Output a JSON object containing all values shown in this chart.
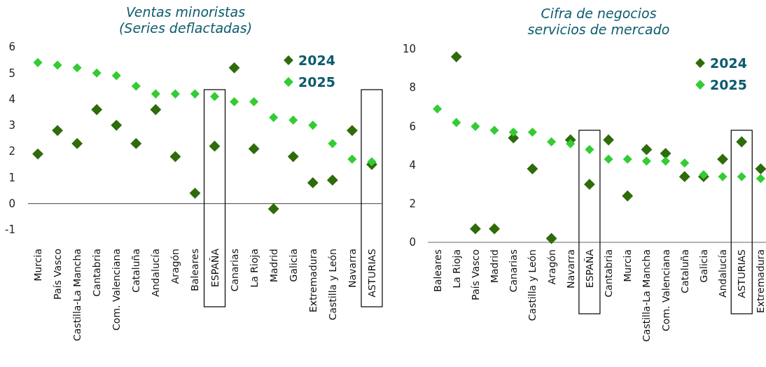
{
  "chart_data": [
    {
      "type": "scatter",
      "title": "Ventas minoristas\n(Series deflactadas)",
      "categories": [
        "Murcia",
        "País Vasco",
        "Castilla-La Mancha",
        "Cantabria",
        "Com. Valenciana",
        "Cataluña",
        "Andalucía",
        "Aragón",
        "Baleares",
        "ESPAÑA",
        "Canarias",
        "La Rioja",
        "Madrid",
        "Galicia",
        "Extremadura",
        "Castilla y León",
        "Navarra",
        "ASTURIAS"
      ],
      "series": [
        {
          "name": "2024",
          "color": "#2e6b0a",
          "values": [
            1.9,
            2.8,
            2.3,
            3.6,
            3.0,
            2.3,
            3.6,
            1.8,
            0.4,
            2.2,
            5.2,
            2.1,
            -0.2,
            1.8,
            0.8,
            0.9,
            2.8,
            1.5
          ]
        },
        {
          "name": "2025",
          "color": "#33cc33",
          "values": [
            5.4,
            5.3,
            5.2,
            5.0,
            4.9,
            4.5,
            4.2,
            4.2,
            4.2,
            4.1,
            3.9,
            3.9,
            3.3,
            3.2,
            3.0,
            2.3,
            1.7,
            1.6
          ]
        }
      ],
      "ylim": [
        -1,
        6
      ],
      "yticks": [
        -1,
        0,
        1,
        2,
        3,
        4,
        5,
        6
      ],
      "ref_lines": [
        {
          "axis": "y",
          "value": 0,
          "color": "#666666"
        }
      ],
      "grid": false,
      "legend": "top right",
      "marker": "diamond"
    },
    {
      "type": "scatter",
      "title": "Cifra de negocios\nservicios de mercado",
      "categories": [
        "Baleares",
        "La Rioja",
        "País Vasco",
        "Madrid",
        "Canarias",
        "Castilla y León",
        "Aragón",
        "Navarra",
        "ESPAÑA",
        "Cantabria",
        "Murcia",
        "Castilla-La Mancha",
        "Com. Valenciana",
        "Cataluña",
        "Galicia",
        "Andalucía",
        "ASTURIAS",
        "Extremadura"
      ],
      "series": [
        {
          "name": "2024",
          "color": "#2e6b0a",
          "values": [
            null,
            9.6,
            0.7,
            0.7,
            5.4,
            3.8,
            0.2,
            5.3,
            3.0,
            5.3,
            2.4,
            4.8,
            4.6,
            3.4,
            3.4,
            4.3,
            5.2,
            3.8
          ]
        },
        {
          "name": "2025",
          "color": "#33cc33",
          "values": [
            6.9,
            6.2,
            6.0,
            5.8,
            5.7,
            5.7,
            5.2,
            5.1,
            4.8,
            4.3,
            4.3,
            4.2,
            4.2,
            4.1,
            3.5,
            3.4,
            3.4,
            3.3
          ]
        }
      ],
      "ylim": [
        0,
        10
      ],
      "yticks": [
        0,
        2,
        4,
        6,
        8,
        10
      ],
      "grid": false,
      "legend": "top right",
      "marker": "diamond"
    }
  ]
}
